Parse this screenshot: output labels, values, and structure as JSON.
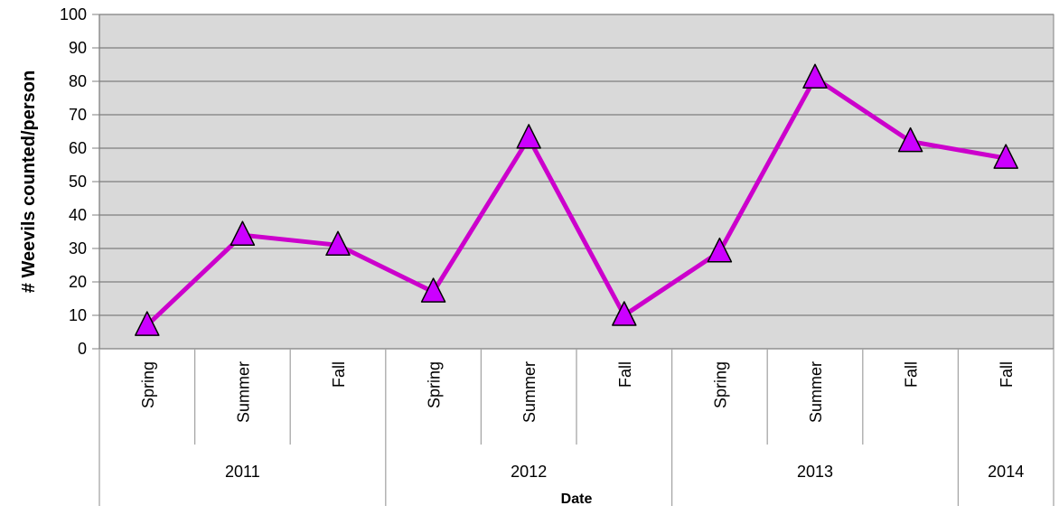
{
  "chart_data": {
    "type": "line",
    "title": "",
    "xlabel": "Date",
    "ylabel": "# Weevils counted/person",
    "ylim": [
      0,
      100
    ],
    "y_ticks": [
      "0",
      "10",
      "20",
      "30",
      "40",
      "50",
      "60",
      "70",
      "80",
      "90",
      "100"
    ],
    "categories": [
      {
        "season": "Spring",
        "year": "2011"
      },
      {
        "season": "Summer",
        "year": "2011"
      },
      {
        "season": "Fall",
        "year": "2011"
      },
      {
        "season": "Spring",
        "year": "2012"
      },
      {
        "season": "Summer",
        "year": "2012"
      },
      {
        "season": "Fall",
        "year": "2012"
      },
      {
        "season": "Spring",
        "year": "2013"
      },
      {
        "season": "Summer",
        "year": "2013"
      },
      {
        "season": "Fall",
        "year": "2013"
      },
      {
        "season": "Fall",
        "year": "2014"
      }
    ],
    "year_groups": [
      {
        "label": "2011",
        "count": 3
      },
      {
        "label": "2012",
        "count": 3
      },
      {
        "label": "2013",
        "count": 3
      },
      {
        "label": "2014",
        "count": 1
      }
    ],
    "series": [
      {
        "values": [
          7,
          34,
          31,
          17,
          63,
          10,
          29,
          81,
          62,
          57
        ],
        "color": "#cc00cc",
        "marker_fill": "#cc00ff",
        "marker": "triangle"
      }
    ],
    "plot_background": "#d9d9d9",
    "grid": true,
    "legend": "none"
  }
}
